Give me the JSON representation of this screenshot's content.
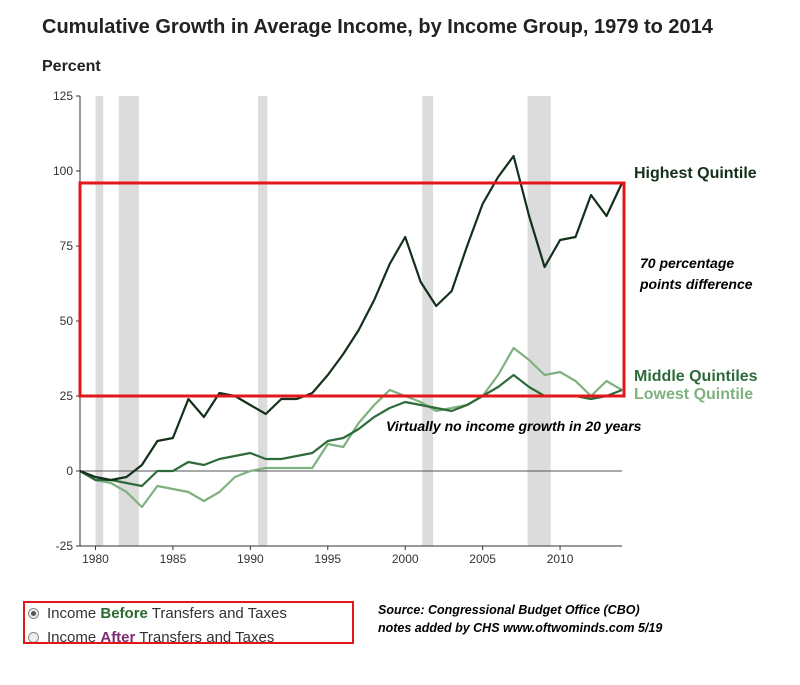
{
  "chart_data": {
    "type": "line",
    "title": "Cumulative Growth in Average Income, by Income Group, 1979 to 2014",
    "ylabel": "Percent",
    "xlabel": "",
    "xlim": [
      1979,
      2014
    ],
    "ylim": [
      -25,
      125
    ],
    "yticks": [
      -25,
      0,
      25,
      50,
      75,
      100,
      125
    ],
    "xticks": [
      1980,
      1985,
      1990,
      1995,
      2000,
      2005,
      2010
    ],
    "recessions": [
      [
        1980,
        1980.5
      ],
      [
        1981.5,
        1982.8
      ],
      [
        1990.5,
        1991.1
      ],
      [
        2001.1,
        2001.8
      ],
      [
        2007.9,
        2009.4
      ]
    ],
    "x": [
      1979,
      1980,
      1981,
      1982,
      1983,
      1984,
      1985,
      1986,
      1987,
      1988,
      1989,
      1990,
      1991,
      1992,
      1993,
      1994,
      1995,
      1996,
      1997,
      1998,
      1999,
      2000,
      2001,
      2002,
      2003,
      2004,
      2005,
      2006,
      2007,
      2008,
      2009,
      2010,
      2011,
      2012,
      2013,
      2014
    ],
    "series": [
      {
        "name": "Highest Quintile",
        "color": "#14301a",
        "values": [
          0,
          -2,
          -3,
          -2,
          2,
          10,
          11,
          24,
          18,
          26,
          25,
          22,
          19,
          24,
          24,
          26,
          32,
          39,
          47,
          57,
          69,
          78,
          63,
          55,
          60,
          75,
          89,
          98,
          105,
          85,
          68,
          77,
          78,
          92,
          85,
          96
        ]
      },
      {
        "name": "Middle Quintiles",
        "color": "#2f6b3a",
        "values": [
          0,
          -3,
          -3,
          -4,
          -5,
          0,
          0,
          3,
          2,
          4,
          5,
          6,
          4,
          4,
          5,
          6,
          10,
          11,
          14,
          18,
          21,
          23,
          22,
          21,
          20,
          22,
          25,
          28,
          32,
          28,
          25,
          25,
          25,
          24,
          25,
          27
        ]
      },
      {
        "name": "Lowest Quintile",
        "color": "#7fb17f",
        "values": [
          0,
          -3,
          -4,
          -7,
          -12,
          -5,
          -6,
          -7,
          -10,
          -7,
          -2,
          0,
          1,
          1,
          1,
          1,
          9,
          8,
          16,
          22,
          27,
          25,
          23,
          20,
          21,
          22,
          25,
          32,
          41,
          37,
          32,
          33,
          30,
          25,
          30,
          27
        ]
      }
    ]
  },
  "annotations": {
    "difference": [
      "70 percentage",
      "points difference"
    ],
    "no_growth": "Virtually no income growth in 20 years",
    "source_line1": "Source: Congressional Budget Office (CBO)",
    "source_line2": "notes added by CHS   www.oftwominds.com  5/19"
  },
  "highlight": {
    "color": "#e3161b",
    "upper_level": 96,
    "lower_level": 25
  },
  "options": [
    {
      "pre": "Income ",
      "kw": "Before",
      "post": " Transfers and Taxes",
      "kw_color": "#2d6a2f",
      "selected": true
    },
    {
      "pre": "Income ",
      "kw": "After",
      "post": " Transfers and Taxes",
      "kw_color": "#7b2c6f",
      "selected": false
    }
  ]
}
